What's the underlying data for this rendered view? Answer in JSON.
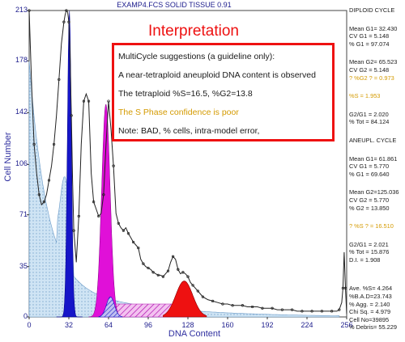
{
  "window_title": "EXAMP4.FCS SOLID TISSUE 0.91",
  "interpretation": {
    "title": "Interpretation",
    "lines": [
      "MultiCycle suggestions (a guideline only):",
      "A near-tetraploid aneuploid DNA content is observed",
      "The tetraploid %S=16.5, %G2=13.8",
      "The S Phase confidence is poor",
      "Note: BAD, % cells, intra-model error,"
    ],
    "colors": {
      "border": "#ee1111",
      "highlight_line": "#d49a00"
    }
  },
  "stats_panel": {
    "diploid_header": "DIPLOID  CYCLE",
    "diploid_g1": [
      "Mean G1=  32.430",
      "CV G1 =  5.148",
      "% G1 = 97.074"
    ],
    "diploid_g2": [
      "Mean G2= 65.523",
      "CV G2 =  5.148"
    ],
    "diploid_g2_flag": "? %G2 ? =  0.973",
    "diploid_s": "%S =  1.953",
    "diploid_ratio": [
      "G2/G1 =  2.020",
      "% Tot = 84.124"
    ],
    "aneuploid_header": "ANEUPL. CYCLE",
    "aneuploid_g1": [
      "Mean G1=  61.861",
      "CV G1 =  5.770",
      "% G1 = 69.640"
    ],
    "aneuploid_g2": [
      "Mean G2=125.036",
      "CV G2 =  5.770",
      "% G2 = 13.850"
    ],
    "aneuploid_s": "? %S ? = 16.510",
    "aneuploid_ratio": [
      "G2/G1 =  2.021",
      "% Tot = 15.876",
      "D.I.   =  1.908"
    ],
    "summary": [
      "Ave. %S=  4.264",
      "%B.A.D=23.743",
      "% Agg. =  2.140",
      "Chi Sq. =  4.979",
      "Cell No=39895",
      "% Debris= 55.229"
    ]
  },
  "chart_data": {
    "type": "area",
    "xlabel": "DNA Content",
    "ylabel": "Cell Number",
    "xlim": [
      0,
      256
    ],
    "ylim": [
      0,
      213
    ],
    "x_ticks": [
      0,
      32,
      64,
      96,
      128,
      160,
      192,
      224,
      256
    ],
    "y_ticks": [
      0,
      35,
      71,
      106,
      142,
      178,
      213
    ],
    "grid": false,
    "histogram": {
      "x": [
        0,
        2,
        4,
        6,
        8,
        10,
        12,
        14,
        16,
        18,
        20,
        22,
        24,
        26,
        28,
        29,
        30,
        31,
        32,
        33,
        34,
        35,
        36,
        38,
        40,
        42,
        44,
        46,
        48,
        50,
        52,
        54,
        56,
        58,
        60,
        62,
        64,
        66,
        68,
        70,
        72,
        74,
        76,
        78,
        80,
        82,
        84,
        86,
        88,
        90,
        92,
        94,
        96,
        98,
        100,
        102,
        104,
        106,
        108,
        110,
        112,
        114,
        116,
        118,
        120,
        122,
        124,
        126,
        128,
        130,
        132,
        134,
        136,
        138,
        140,
        144,
        148,
        152,
        156,
        160,
        164,
        168,
        172,
        176,
        180,
        184,
        188,
        192,
        196,
        200,
        204,
        208,
        212,
        216,
        220,
        224,
        228,
        232,
        236,
        240,
        244,
        248,
        250,
        252,
        253,
        254,
        255,
        256
      ],
      "y": [
        213,
        160,
        120,
        100,
        85,
        78,
        80,
        85,
        95,
        105,
        120,
        140,
        165,
        190,
        205,
        210,
        213,
        212,
        205,
        180,
        140,
        95,
        60,
        38,
        70,
        120,
        150,
        155,
        150,
        100,
        80,
        75,
        70,
        72,
        85,
        120,
        150,
        130,
        105,
        72,
        65,
        62,
        60,
        62,
        58,
        55,
        52,
        50,
        48,
        40,
        37,
        35,
        34,
        33,
        31,
        30,
        29,
        29,
        28,
        30,
        32,
        38,
        42,
        40,
        33,
        30,
        31,
        30,
        28,
        24,
        22,
        20,
        18,
        16,
        14,
        12,
        11,
        10,
        9,
        9,
        8,
        8,
        8,
        7,
        7,
        7,
        6,
        6,
        6,
        5,
        5,
        5,
        5,
        4,
        4,
        4,
        4,
        4,
        4,
        4,
        4,
        4,
        5,
        10,
        20,
        45,
        20,
        2
      ],
      "color": "#222222"
    },
    "components": [
      {
        "name": "Debris",
        "color": "#bcd9ee",
        "pattern": "dots"
      },
      {
        "name": "Diploid G1",
        "color": "#1515c8",
        "mean": 32.43,
        "cv": 5.148
      },
      {
        "name": "Aneuploid G1",
        "color": "#e010d8",
        "mean": 61.861,
        "cv": 5.77
      },
      {
        "name": "Diploid G2",
        "color": "#1515c8",
        "mean": 65.523,
        "cv": 5.148,
        "pattern": "hatch"
      },
      {
        "name": "Aneuploid S",
        "color": "#c020c0",
        "pattern": "hatch"
      },
      {
        "name": "Aneuploid G2",
        "color": "#ee1111",
        "mean": 125.036,
        "cv": 5.77
      }
    ]
  }
}
